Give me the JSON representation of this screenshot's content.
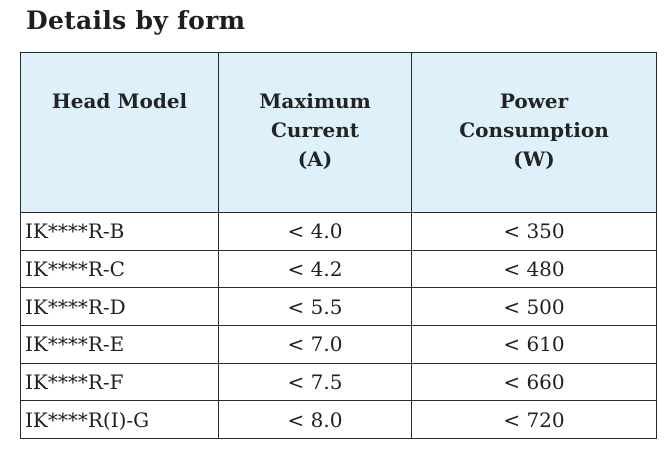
{
  "title": "Details by form",
  "table": {
    "headers": [
      [
        "Head Model"
      ],
      [
        "Maximum",
        "Current",
        "(A)"
      ],
      [
        "Power",
        "Consumption",
        "(W)"
      ]
    ],
    "rows": [
      {
        "model": "IK****R-B",
        "current": "< 4.0",
        "power": "< 350"
      },
      {
        "model": "IK****R-C",
        "current": "< 4.2",
        "power": "< 480"
      },
      {
        "model": "IK****R-D",
        "current": "< 5.5",
        "power": "< 500"
      },
      {
        "model": "IK****R-E",
        "current": "< 7.0",
        "power": "< 610"
      },
      {
        "model": "IK****R-F",
        "current": "< 7.5",
        "power": "< 660"
      },
      {
        "model": "IK****R(I)-G",
        "current": "< 8.0",
        "power": "< 720"
      }
    ]
  },
  "colors": {
    "header_bg": "#def1fb",
    "border": "#2a2a2a",
    "text": "#1a1a1a"
  }
}
